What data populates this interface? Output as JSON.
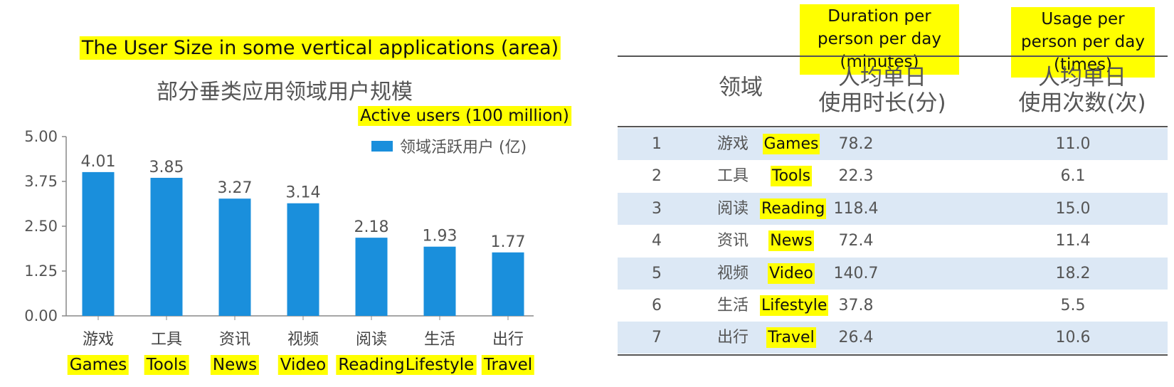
{
  "chart_header": {
    "title_en": "The User Size in some vertical applications (area)",
    "title_cn": "部分垂类应用领域用户规模",
    "legend_en": "Active users (100 million)",
    "legend_cn": "领域活跃用户 (亿)"
  },
  "chart_data": {
    "type": "bar",
    "categories": [
      "游戏",
      "工具",
      "资讯",
      "视频",
      "阅读",
      "生活",
      "出行"
    ],
    "categories_en": [
      "Games",
      "Tools",
      "News",
      "Video",
      "Reading",
      "Lifestyle",
      "Travel"
    ],
    "series": [
      {
        "name": "领域活跃用户 (亿)",
        "values": [
          4.01,
          3.85,
          3.27,
          3.14,
          2.18,
          1.93,
          1.77
        ]
      }
    ],
    "value_labels": [
      "4.01",
      "3.85",
      "3.27",
      "3.14",
      "2.18",
      "1.93",
      "1.77"
    ],
    "yticks": [
      "5.00",
      "3.75",
      "2.50",
      "1.25",
      "0.00"
    ],
    "ylim": [
      0,
      5
    ],
    "bar_color": "#1a8fdc",
    "grid": false
  },
  "table": {
    "header_en": {
      "duration": "Duration per person per day (minutes)",
      "usage": "Usage per person per day (times)"
    },
    "header_cn": {
      "field": "领域",
      "duration_line1": "人均单日",
      "duration_line2": "使用时长(分)",
      "usage_line1": "人均单日",
      "usage_line2": "使用次数(次)"
    },
    "rows": [
      {
        "rank": "1",
        "cn": "游戏",
        "en": "Games",
        "duration": "78.2",
        "usage": "11.0"
      },
      {
        "rank": "2",
        "cn": "工具",
        "en": "Tools",
        "duration": "22.3",
        "usage": "6.1"
      },
      {
        "rank": "3",
        "cn": "阅读",
        "en": "Reading",
        "duration": "118.4",
        "usage": "15.0"
      },
      {
        "rank": "4",
        "cn": "资讯",
        "en": "News",
        "duration": "72.4",
        "usage": "11.4"
      },
      {
        "rank": "5",
        "cn": "视频",
        "en": "Video",
        "duration": "140.7",
        "usage": "18.2"
      },
      {
        "rank": "6",
        "cn": "生活",
        "en": "Lifestyle",
        "duration": "37.8",
        "usage": "5.5"
      },
      {
        "rank": "7",
        "cn": "出行",
        "en": "Travel",
        "duration": "26.4",
        "usage": "10.6"
      }
    ],
    "shade_color": "#dce8f5"
  }
}
